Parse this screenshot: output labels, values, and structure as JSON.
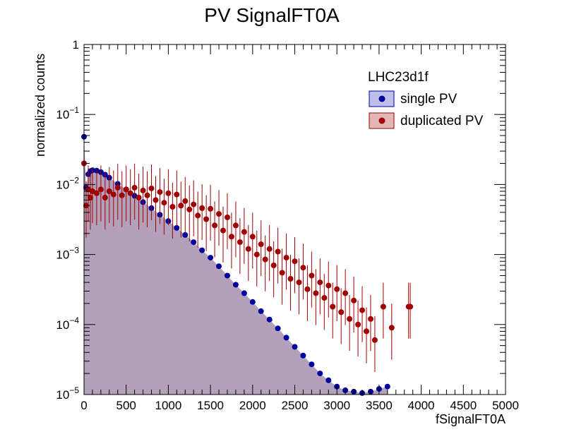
{
  "chart_data": {
    "type": "scatter",
    "title": "PV SignalFT0A",
    "xlabel": "fSignalFT0A",
    "ylabel": "normalized counts",
    "xlim": [
      0,
      5000
    ],
    "ylim": [
      1e-05,
      1
    ],
    "yscale": "log",
    "grid": false,
    "legend": {
      "title": "LHC23d1f",
      "placement": "top-right",
      "entries": [
        "single PV",
        "duplicated PV"
      ]
    },
    "x_ticks": [
      "0",
      "500",
      "1000",
      "1500",
      "2000",
      "2500",
      "3000",
      "3500",
      "4000",
      "4500",
      "5000"
    ],
    "y_ticks": [
      {
        "base": "10",
        "exp": "−5",
        "value": 1e-05
      },
      {
        "base": "10",
        "exp": "−4",
        "value": 0.0001
      },
      {
        "base": "10",
        "exp": "−3",
        "value": 0.001
      },
      {
        "base": "10",
        "exp": "−2",
        "value": 0.01
      },
      {
        "base": "10",
        "exp": "−1",
        "value": 0.1
      },
      {
        "base": "1",
        "exp": "",
        "value": 1
      }
    ],
    "series": [
      {
        "name": "single PV",
        "color": "#0000a0",
        "fill": "#b3a0ba",
        "x": [
          0,
          25,
          50,
          75,
          100,
          150,
          200,
          250,
          300,
          400,
          500,
          600,
          700,
          800,
          900,
          1000,
          1100,
          1200,
          1300,
          1400,
          1500,
          1600,
          1700,
          1800,
          1900,
          2000,
          2100,
          2200,
          2300,
          2400,
          2500,
          2600,
          2700,
          2800,
          2900,
          3000,
          3100,
          3200,
          3300,
          3400,
          3500,
          3600
        ],
        "y": [
          0.048,
          0.009,
          0.014,
          0.0155,
          0.016,
          0.0158,
          0.015,
          0.0138,
          0.0125,
          0.0102,
          0.0085,
          0.0069,
          0.0056,
          0.0046,
          0.0037,
          0.003,
          0.0024,
          0.0019,
          0.0015,
          0.00115,
          0.0009,
          0.00068,
          0.0005,
          0.00037,
          0.00028,
          0.00021,
          0.000155,
          0.000118,
          8.8e-05,
          6.5e-05,
          4.8e-05,
          3.6e-05,
          2.7e-05,
          2e-05,
          1.6e-05,
          1.3e-05,
          1.15e-05,
          1.1e-05,
          1.05e-05,
          1.1e-05,
          1.2e-05,
          1.3e-05
        ]
      },
      {
        "name": "duplicated PV",
        "color": "#a00000",
        "x": [
          0,
          25,
          50,
          75,
          100,
          150,
          200,
          250,
          300,
          350,
          400,
          450,
          500,
          550,
          600,
          650,
          700,
          750,
          800,
          850,
          900,
          950,
          1000,
          1050,
          1100,
          1150,
          1200,
          1250,
          1300,
          1350,
          1400,
          1450,
          1500,
          1550,
          1600,
          1650,
          1700,
          1750,
          1800,
          1850,
          1900,
          1950,
          2000,
          2050,
          2100,
          2150,
          2200,
          2250,
          2300,
          2350,
          2400,
          2450,
          2500,
          2550,
          2600,
          2650,
          2700,
          2750,
          2800,
          2850,
          2900,
          2950,
          3000,
          3050,
          3100,
          3150,
          3200,
          3250,
          3300,
          3350,
          3400,
          3450,
          3550,
          3650,
          3850,
          3870
        ],
        "y": [
          0.02,
          0.005,
          0.0085,
          0.0065,
          0.008,
          0.0075,
          0.0085,
          0.0065,
          0.008,
          0.0072,
          0.009,
          0.007,
          0.0085,
          0.0075,
          0.009,
          0.0065,
          0.0082,
          0.007,
          0.0088,
          0.006,
          0.0078,
          0.0055,
          0.0075,
          0.0048,
          0.0072,
          0.005,
          0.0058,
          0.0044,
          0.0052,
          0.0036,
          0.0046,
          0.0032,
          0.0045,
          0.0026,
          0.0038,
          0.0022,
          0.0034,
          0.0018,
          0.0026,
          0.0015,
          0.0021,
          0.0012,
          0.0018,
          0.001,
          0.0014,
          0.00085,
          0.0012,
          0.0007,
          0.0011,
          0.00055,
          0.0009,
          0.00045,
          0.0008,
          0.0004,
          0.00065,
          0.00032,
          0.0005,
          0.00028,
          0.0004,
          0.00024,
          0.00036,
          0.00018,
          0.00032,
          0.00015,
          0.00028,
          0.00012,
          0.00022,
          0.0001,
          0.00016,
          8e-05,
          0.00012,
          6e-05,
          0.00018,
          9e-05,
          0.00018,
          0.00018
        ]
      }
    ]
  }
}
